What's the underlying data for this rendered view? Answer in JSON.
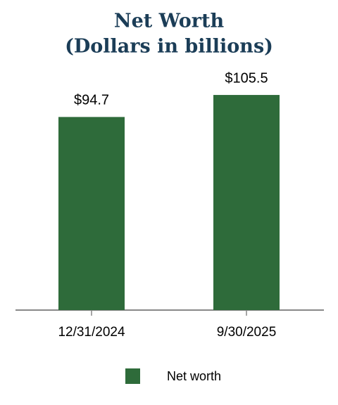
{
  "chart_data": {
    "type": "bar",
    "title": "Net Worth",
    "subtitle": "(Dollars in billions)",
    "categories": [
      "12/31/2024",
      "9/30/2025"
    ],
    "series": [
      {
        "name": "Net worth",
        "color": "#2e6b3a",
        "values": [
          94.7,
          105.5
        ],
        "value_labels": [
          "$94.7",
          "$105.5"
        ]
      }
    ],
    "ylim": [
      0,
      120
    ]
  }
}
